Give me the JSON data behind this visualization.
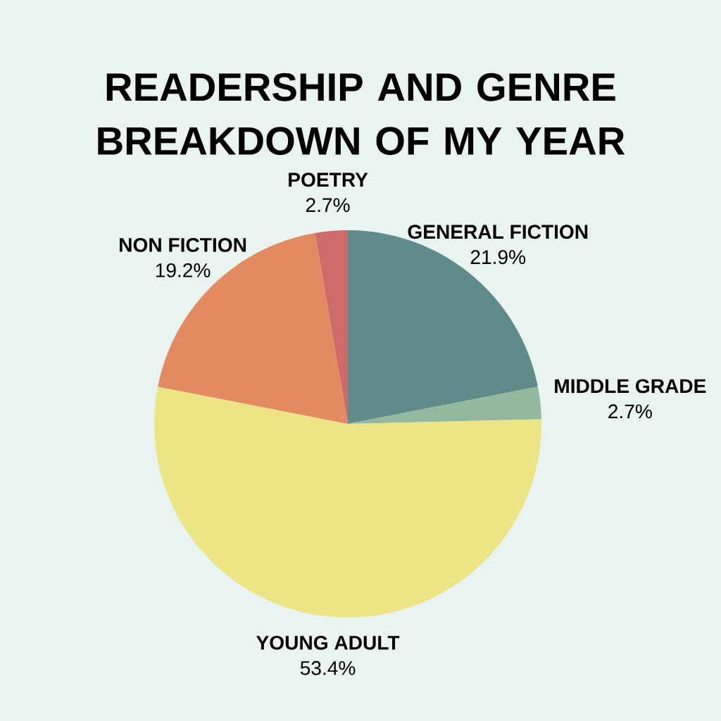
{
  "chart_data": {
    "type": "pie",
    "title": "READERSHIP AND GENRE BREAKDOWN OF MY YEAR",
    "categories": [
      "GENERAL FICTION",
      "MIDDLE GRADE",
      "YOUNG ADULT",
      "NON FICTION",
      "POETRY"
    ],
    "values": [
      21.9,
      2.7,
      53.4,
      19.2,
      2.7
    ],
    "value_labels": [
      "21.9%",
      "2.7%",
      "53.4%",
      "19.2%",
      "2.7%"
    ],
    "colors": [
      "#5f8b8a",
      "#93b8a0",
      "#ebe585",
      "#e38b60",
      "#cd6b6b"
    ]
  }
}
